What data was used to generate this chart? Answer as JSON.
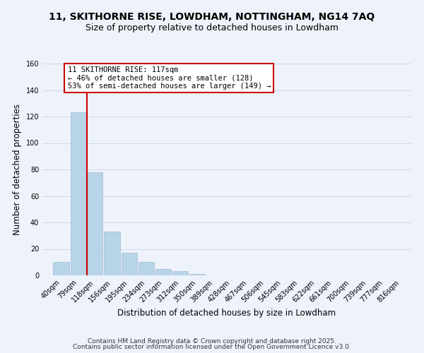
{
  "title1": "11, SKITHORNE RISE, LOWDHAM, NOTTINGHAM, NG14 7AQ",
  "title2": "Size of property relative to detached houses in Lowdham",
  "xlabel": "Distribution of detached houses by size in Lowdham",
  "ylabel": "Number of detached properties",
  "bar_values": [
    10,
    123,
    78,
    33,
    17,
    10,
    5,
    3,
    1,
    0,
    0,
    0,
    0,
    0,
    0,
    0,
    0,
    0,
    0,
    0,
    0
  ],
  "tick_labels": [
    "40sqm",
    "79sqm",
    "118sqm",
    "156sqm",
    "195sqm",
    "234sqm",
    "273sqm",
    "312sqm",
    "350sqm",
    "389sqm",
    "428sqm",
    "467sqm",
    "506sqm",
    "545sqm",
    "583sqm",
    "622sqm",
    "661sqm",
    "700sqm",
    "739sqm",
    "777sqm",
    "816sqm"
  ],
  "bin_edges": [
    40,
    79,
    118,
    156,
    195,
    234,
    273,
    312,
    350,
    389,
    428,
    467,
    506,
    545,
    583,
    622,
    661,
    700,
    739,
    777,
    816
  ],
  "bar_color": "#b8d4e8",
  "bar_edge_color": "#a0bcd4",
  "vline_x": 118,
  "vline_color": "#cc0000",
  "ylim": [
    0,
    160
  ],
  "yticks": [
    0,
    20,
    40,
    60,
    80,
    100,
    120,
    140,
    160
  ],
  "annotation_text": "11 SKITHORNE RISE: 117sqm\n← 46% of detached houses are smaller (128)\n53% of semi-detached houses are larger (149) →",
  "annotation_box_color": "#ffffff",
  "annotation_border_color": "#cc0000",
  "footer1": "Contains HM Land Registry data © Crown copyright and database right 2025.",
  "footer2": "Contains public sector information licensed under the Open Government Licence v3.0.",
  "bg_color": "#eef2fa",
  "grid_color": "#d0d8ee",
  "title_fontsize": 10,
  "subtitle_fontsize": 9,
  "axis_label_fontsize": 8.5,
  "tick_fontsize": 7,
  "footer_fontsize": 6.5,
  "annotation_fontsize": 7.5
}
